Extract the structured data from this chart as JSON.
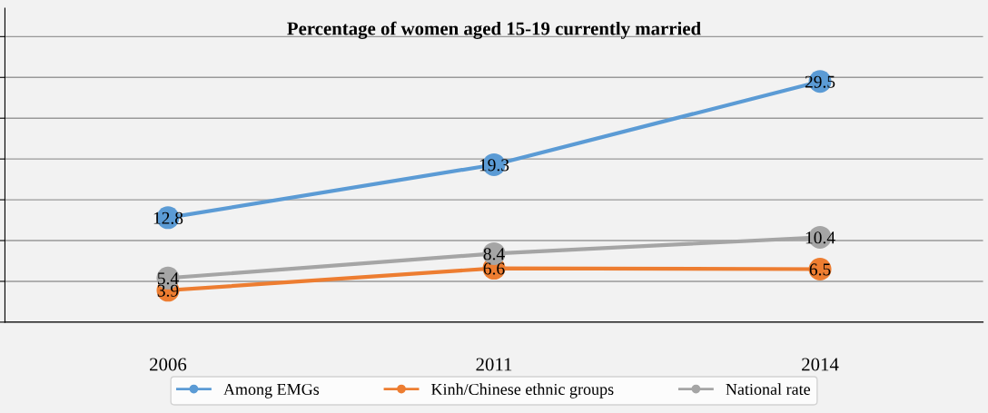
{
  "chart_data": {
    "type": "line",
    "title": "Percentage of women aged 15-19 currently married",
    "categories": [
      "2006",
      "2011",
      "2014"
    ],
    "series": [
      {
        "name": "Among EMGs",
        "color": "#5b9bd5",
        "values": [
          12.8,
          19.3,
          29.5
        ]
      },
      {
        "name": "Kinh/Chinese ethnic groups",
        "color": "#ed7d31",
        "values": [
          3.9,
          6.6,
          6.5
        ]
      },
      {
        "name": "National rate",
        "color": "#a5a5a5",
        "values": [
          5.4,
          8.4,
          10.4
        ]
      }
    ],
    "tick_labels": "x",
    "grid": "y",
    "legend": "bottom",
    "marker": "circle",
    "line_style": "solid",
    "data_labels": true
  }
}
